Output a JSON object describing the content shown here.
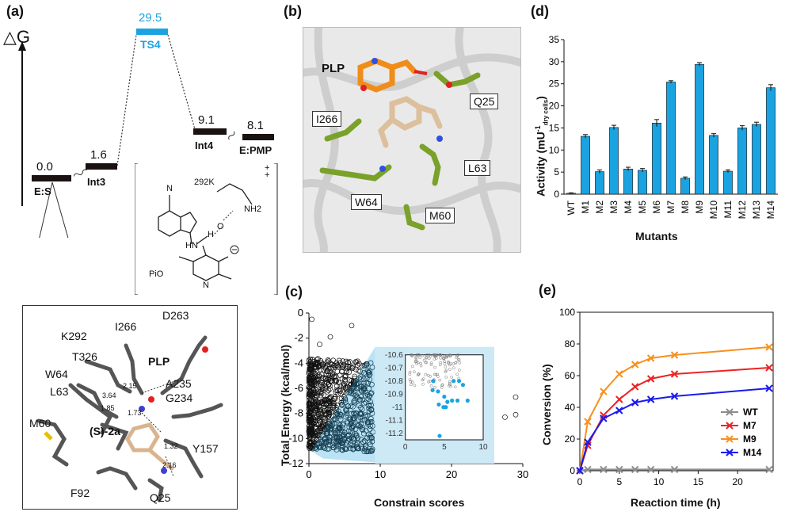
{
  "panel_a": {
    "label": "(a)",
    "delta_g": "△G",
    "levels": [
      {
        "name": "E:S",
        "value": "0.0"
      },
      {
        "name": "Int3",
        "value": "1.6"
      },
      {
        "name": "TS4",
        "value": "29.5"
      },
      {
        "name": "Int4",
        "value": "9.1"
      },
      {
        "name": "E:PMP",
        "value": "8.1"
      }
    ],
    "ts_structure": {
      "label_292k": "292K",
      "charge": "++",
      "pio": "PiO",
      "n": "N",
      "h": "H",
      "o": "O",
      "hn": "HN",
      "nh2": "NH2",
      "cn": "N"
    },
    "inset_labels": [
      "K292",
      "I266",
      "D263",
      "PLP",
      "T326",
      "W64",
      "L63",
      "A235",
      "G234",
      "M60",
      "(S)-2a",
      "Y157",
      "F92",
      "Q25"
    ],
    "distances": [
      "2.15",
      "3.64",
      "1.85",
      "1.73",
      "1.32",
      "2.16"
    ]
  },
  "panel_b": {
    "label": "(b)",
    "residues": [
      "PLP",
      "Q25",
      "I266",
      "L63",
      "W64",
      "M60"
    ]
  },
  "panel_c": {
    "label": "(c)",
    "ylabel": "Total Energy (kcal/mol)",
    "xlabel": "Constrain scores",
    "inset_y_ticks": [
      "-10.6",
      "-10.7",
      "-10.8",
      "-10.9",
      "-11",
      "-11.1",
      "-11.2"
    ],
    "inset_x_ticks": [
      "0",
      "5",
      "10"
    ],
    "accent": "#1aa3e0"
  },
  "panel_d": {
    "label": "(d)",
    "xlabel": "Mutants",
    "ylabel_main": "Activity (mU",
    "ylabel_sup": "-1",
    "ylabel_sub": "dry cells",
    "ylabel_end": ")"
  },
  "panel_e": {
    "label": "(e)",
    "xlabel": "Reaction time (h)",
    "ylabel": "Conversion (%)"
  },
  "chart_data": [
    {
      "type": "scatter",
      "panel": "c",
      "xlabel": "Constrain scores",
      "ylabel": "Total Energy (kcal/mol)",
      "xlim": [
        0,
        30
      ],
      "ylim": [
        -12,
        0
      ],
      "x_ticks": [
        0,
        10,
        20,
        30
      ],
      "y_ticks": [
        0,
        -2,
        -4,
        -6,
        -8,
        -10,
        -12
      ],
      "highlight_color": "#1aa3e0",
      "inset": {
        "xlim": [
          0,
          10
        ],
        "ylim": [
          -11.25,
          -10.6
        ],
        "highlight_points": [
          {
            "x": 3.5,
            "y": -10.87
          },
          {
            "x": 3.6,
            "y": -10.8
          },
          {
            "x": 4.2,
            "y": -10.88
          },
          {
            "x": 4.3,
            "y": -10.98
          },
          {
            "x": 5.0,
            "y": -10.92
          },
          {
            "x": 5.4,
            "y": -10.96
          },
          {
            "x": 5.2,
            "y": -11.0
          },
          {
            "x": 4.9,
            "y": -11.0
          },
          {
            "x": 6.0,
            "y": -10.95
          },
          {
            "x": 6.7,
            "y": -10.95
          },
          {
            "x": 7.4,
            "y": -10.83
          },
          {
            "x": 8.0,
            "y": -10.95
          },
          {
            "x": 6.9,
            "y": -10.8
          },
          {
            "x": 6.2,
            "y": -10.8
          },
          {
            "x": 4.4,
            "y": -11.22
          }
        ]
      }
    },
    {
      "type": "bar",
      "panel": "d",
      "categories": [
        "WT",
        "M1",
        "M2",
        "M3",
        "M4",
        "M5",
        "M6",
        "M7",
        "M8",
        "M9",
        "M10",
        "M11",
        "M12",
        "M13",
        "M14"
      ],
      "values": [
        0.2,
        13.1,
        5.1,
        15.1,
        5.7,
        5.4,
        16.1,
        25.4,
        3.6,
        29.4,
        13.3,
        5.2,
        15.0,
        15.8,
        24.1
      ],
      "errors": [
        0.1,
        0.4,
        0.4,
        0.5,
        0.4,
        0.4,
        0.8,
        0.3,
        0.3,
        0.4,
        0.4,
        0.3,
        0.5,
        0.5,
        0.7
      ],
      "xlabel": "Mutants",
      "ylim": [
        0,
        35
      ],
      "y_ticks": [
        0,
        5,
        10,
        15,
        20,
        25,
        30,
        35
      ],
      "color": "#1aa3e0"
    },
    {
      "type": "line",
      "panel": "e",
      "xlabel": "Reaction time (h)",
      "ylabel": "Conversion (%)",
      "xlim": [
        0,
        24.5
      ],
      "ylim": [
        0,
        100
      ],
      "x_ticks": [
        0,
        5,
        10,
        15,
        20
      ],
      "y_ticks": [
        0,
        20,
        40,
        60,
        80,
        100
      ],
      "legend": "right",
      "series": [
        {
          "name": "WT",
          "color": "#8c8c8c",
          "x": [
            0,
            1,
            3,
            5,
            7,
            9,
            12,
            24
          ],
          "y": [
            0,
            0.8,
            0.8,
            0.8,
            0.8,
            0.8,
            0.8,
            0.8
          ]
        },
        {
          "name": "M7",
          "color": "#ee2222",
          "x": [
            0,
            1,
            3,
            5,
            7,
            9,
            12,
            24
          ],
          "y": [
            0,
            16,
            35,
            45,
            53,
            58,
            61,
            65
          ]
        },
        {
          "name": "M9",
          "color": "#f7901e",
          "x": [
            0,
            1,
            3,
            5,
            7,
            9,
            12,
            24
          ],
          "y": [
            0,
            31,
            50,
            61,
            67,
            71,
            73,
            78
          ]
        },
        {
          "name": "M14",
          "color": "#1a1aee",
          "x": [
            0,
            1,
            3,
            5,
            7,
            9,
            12,
            24
          ],
          "y": [
            0,
            18,
            33,
            38,
            43,
            45,
            47,
            52
          ]
        }
      ]
    }
  ]
}
